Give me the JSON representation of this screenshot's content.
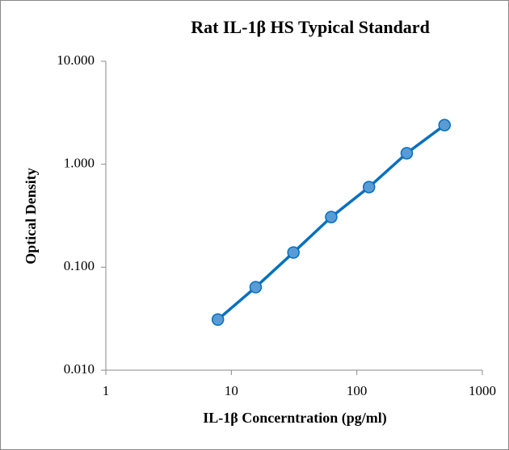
{
  "chart_data": {
    "type": "scatter-line",
    "title": "Rat IL-1β HS Typical Standard",
    "x_label": "IL-1β Concerntration (pg/ml)",
    "y_label": "Optical Density",
    "x": [
      7.81,
      15.63,
      31.25,
      62.5,
      125,
      250,
      500
    ],
    "series": [
      {
        "color": "#0070c0",
        "marker_color": "#5b9bd5",
        "values": [
          0.031,
          0.064,
          0.139,
          0.307,
          0.6,
          1.28,
          2.4
        ]
      }
    ],
    "x_log": true,
    "y_log": true,
    "xlim": [
      1,
      1000
    ],
    "xticks": [
      1,
      10,
      100,
      1000
    ],
    "ylim": [
      0.01,
      10
    ],
    "yticks": [
      {
        "value": 0.01,
        "label": "0.010"
      },
      {
        "value": 0.1,
        "label": "0.100"
      },
      {
        "value": 1,
        "label": "1.000"
      },
      {
        "value": 10,
        "label": "10.000"
      }
    ]
  }
}
